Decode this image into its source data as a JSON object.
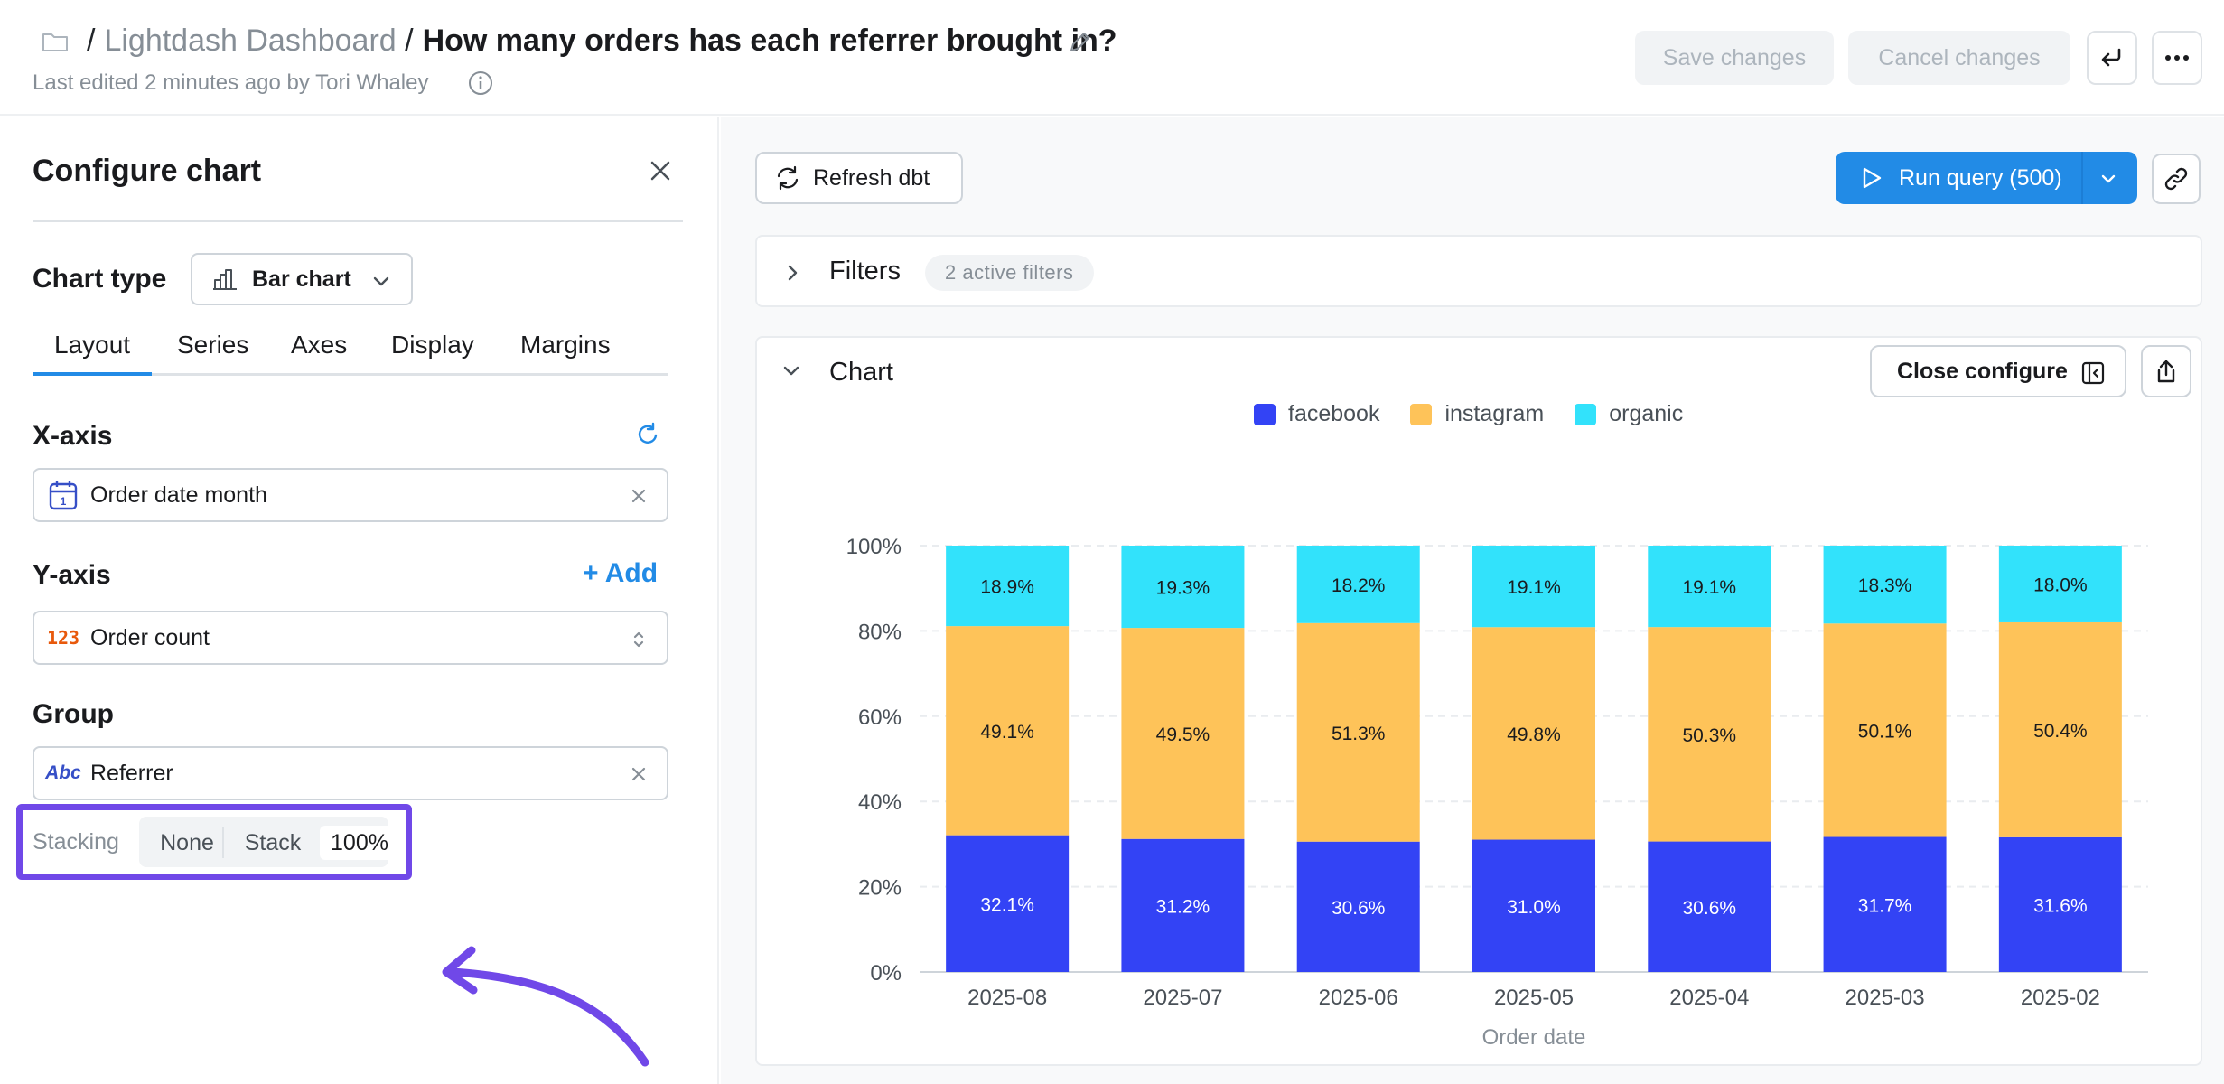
{
  "header": {
    "breadcrumb_sep": "/",
    "parent": "Lightdash Dashboard",
    "title": "How many orders has each referrer brought in?",
    "edited": "Last edited 2 minutes ago by Tori Whaley",
    "save_label": "Save changes",
    "cancel_label": "Cancel changes"
  },
  "config": {
    "title": "Configure chart",
    "chart_type_label": "Chart type",
    "chart_type_value": "Bar chart",
    "tabs": [
      "Layout",
      "Series",
      "Axes",
      "Display",
      "Margins"
    ],
    "active_tab": "Layout",
    "x_axis": {
      "label": "X-axis",
      "value": "Order date month"
    },
    "y_axis": {
      "label": "Y-axis",
      "add": "+ Add",
      "value": "Order count",
      "icon_text": "123"
    },
    "group": {
      "label": "Group",
      "value": "Referrer",
      "icon_text": "Abc"
    },
    "stacking": {
      "label": "Stacking",
      "options": [
        "None",
        "Stack",
        "100%"
      ],
      "selected": "100%"
    }
  },
  "toolbar": {
    "refresh_label": "Refresh dbt",
    "run_label": "Run query (500)"
  },
  "filters": {
    "label": "Filters",
    "badge": "2 active filters"
  },
  "chart_card": {
    "label": "Chart",
    "close_configure": "Close configure"
  },
  "colors": {
    "facebook": "#3343f5",
    "instagram": "#fec359",
    "organic": "#32e2fb",
    "accent": "#228be6",
    "highlight": "#7048e8"
  },
  "chart_data": {
    "type": "bar",
    "stacking": "100%",
    "categories": [
      "2025-08",
      "2025-07",
      "2025-06",
      "2025-05",
      "2025-04",
      "2025-03",
      "2025-02"
    ],
    "series": [
      {
        "name": "facebook",
        "values": [
          32.1,
          31.2,
          30.6,
          31.0,
          30.6,
          31.7,
          31.6
        ]
      },
      {
        "name": "instagram",
        "values": [
          49.1,
          49.5,
          51.3,
          49.8,
          50.3,
          50.1,
          50.4
        ]
      },
      {
        "name": "organic",
        "values": [
          18.9,
          19.3,
          18.2,
          19.1,
          19.1,
          18.3,
          18.0
        ]
      }
    ],
    "data_labels": [
      [
        "32.1%",
        "31.2%",
        "30.6%",
        "31.0%",
        "30.6%",
        "31.7%",
        "31.6%"
      ],
      [
        "49.1%",
        "49.5%",
        "51.3%",
        "49.8%",
        "50.3%",
        "50.1%",
        "50.4%"
      ],
      [
        "18.9%",
        "19.3%",
        "18.2%",
        "19.1%",
        "19.1%",
        "18.3%",
        "18.0%"
      ]
    ],
    "y_ticks": [
      "0%",
      "20%",
      "40%",
      "60%",
      "80%",
      "100%"
    ],
    "ylim": [
      0,
      100
    ],
    "xlabel": "Order date",
    "ylabel": "",
    "legend": "top-center",
    "grid": true
  }
}
